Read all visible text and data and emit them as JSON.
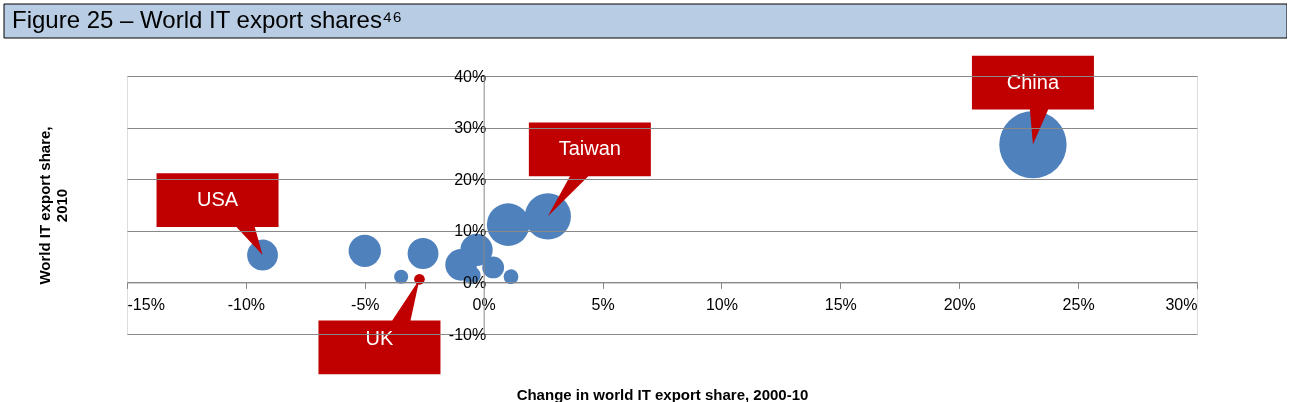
{
  "chart_data": {
    "type": "bubble",
    "title": "Figure 25 – World IT export shares⁴⁶",
    "xlabel": "Change in world IT export share, 2000-10",
    "ylabel": "World IT export share, 2010",
    "x": [
      -9.3,
      -5.0,
      -2.55,
      -3.47,
      -2.7,
      -0.3,
      -0.95,
      -0.5,
      0.4,
      1.15,
      1.03,
      2.7,
      23.1
    ],
    "values": [
      5.3,
      6.1,
      5.6,
      1.1,
      0.6,
      6.3,
      3.4,
      1.4,
      2.9,
      1.1,
      11.2,
      12.8,
      26.7
    ],
    "sizes": [
      0.21,
      0.23,
      0.21,
      0.044,
      0.025,
      0.23,
      0.22,
      0.069,
      0.105,
      0.048,
      0.4,
      0.47,
      1
    ],
    "colors": [
      "#4f81bd",
      "#4f81bd",
      "#4f81bd",
      "#4f81bd",
      "#c00000",
      "#4f81bd",
      "#4f81bd",
      "#4f81bd",
      "#4f81bd",
      "#4f81bd",
      "#4f81bd",
      "#4f81bd",
      "#4f81bd"
    ],
    "xlim": [
      -15,
      30
    ],
    "xticks": [
      {
        "value": -15,
        "label": "-15%"
      },
      {
        "value": -10,
        "label": "-10%"
      },
      {
        "value": -5,
        "label": "-5%"
      },
      {
        "value": 0,
        "label": "0%"
      },
      {
        "value": 5,
        "label": "5%"
      },
      {
        "value": 10,
        "label": "10%"
      },
      {
        "value": 15,
        "label": "15%"
      },
      {
        "value": 20,
        "label": "20%"
      },
      {
        "value": 25,
        "label": "25%"
      },
      {
        "value": 30,
        "label": "30%"
      }
    ],
    "ylim": [
      -10,
      40
    ],
    "yticks": [
      {
        "value": -10,
        "label": "-10%"
      },
      {
        "value": 0,
        "label": "0%"
      },
      {
        "value": 10,
        "label": "10%"
      },
      {
        "value": 20,
        "label": "20%"
      },
      {
        "value": 30,
        "label": "30%"
      },
      {
        "value": 40,
        "label": "40%"
      }
    ],
    "annotations": [
      {
        "text": "USA",
        "x": -9.3,
        "y": 5.3
      },
      {
        "text": "Taiwan",
        "x": 2.7,
        "y": 12.8
      },
      {
        "text": "China",
        "x": 23.1,
        "y": 26.7
      },
      {
        "text": "UK",
        "x": -2.7,
        "y": 0.6
      }
    ],
    "grid": "y",
    "legend": false
  }
}
